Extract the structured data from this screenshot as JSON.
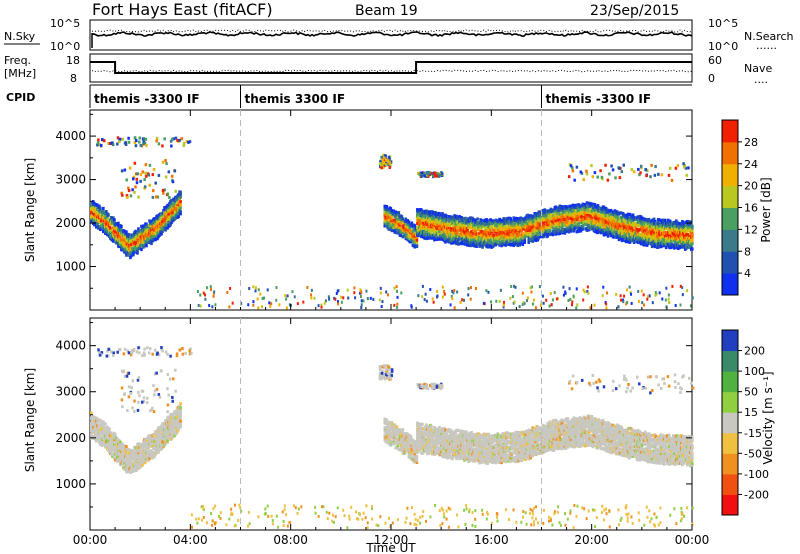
{
  "header": {
    "radar": "Fort Hays East (fitACF)",
    "beam": "Beam 19",
    "date": "23/Sep/2015"
  },
  "noise_panel": {
    "left_label": "N.Sky",
    "right_label": "N.Search",
    "left_ticks": [
      "10^5",
      "10^0"
    ],
    "right_ticks": [
      "10^5",
      "10^0"
    ],
    "dotted_legend": "......"
  },
  "freq_panel": {
    "left_label_1": "Freq.",
    "left_label_2": "[MHz]",
    "right_label": "Nave",
    "left_ticks": [
      "18",
      "8"
    ],
    "right_ticks": [
      "60",
      "0"
    ],
    "dotted_legend": "....",
    "freq_steps": [
      {
        "start_hour": 0.0,
        "end_hour": 1.0,
        "level": "high"
      },
      {
        "start_hour": 1.0,
        "end_hour": 13.0,
        "level": "low"
      },
      {
        "start_hour": 13.0,
        "end_hour": 24.0,
        "level": "high"
      }
    ]
  },
  "cpid": {
    "label": "CPID",
    "segments": [
      {
        "start_hour": 0.0,
        "name": "themis -3300 IF"
      },
      {
        "start_hour": 6.0,
        "name": "themis 3300 IF"
      },
      {
        "start_hour": 18.0,
        "name": "themis -3300 IF"
      }
    ]
  },
  "chart_data": [
    {
      "type": "heatmap",
      "title": "",
      "ylabel": "Slant Range [km]",
      "xlabel": "",
      "xlim": [
        0,
        24
      ],
      "ylim": [
        0,
        4600
      ],
      "yticks": [
        1000,
        2000,
        3000,
        4000
      ],
      "colorbar": {
        "label": "Power [dB]",
        "tick_labels": [
          "4",
          "8",
          "12",
          "16",
          "20",
          "24",
          "28"
        ],
        "colors": [
          "#1030f0",
          "#2050b0",
          "#3a7a8a",
          "#4aa060",
          "#b8c820",
          "#f0b000",
          "#f07000",
          "#f02000"
        ]
      },
      "echo_bands": [
        {
          "from_hour": 0.0,
          "to_hour": 3.6,
          "center_km": [
            2300,
            2100,
            1800,
            1500,
            1700,
            1900,
            2200,
            2500
          ],
          "width_km": 500
        },
        {
          "from_hour": 11.7,
          "to_hour": 13.0,
          "center_km": [
            2200,
            2000,
            1700
          ],
          "width_km": 450
        },
        {
          "from_hour": 13.0,
          "to_hour": 24.0,
          "center_km": [
            2050,
            1900,
            1800,
            1850,
            2100,
            2200,
            1950,
            1800,
            1750
          ],
          "width_km": 600
        }
      ]
    },
    {
      "type": "heatmap",
      "title": "",
      "ylabel": "Slant Range [km]",
      "xlabel": "Time UT",
      "xlim": [
        0,
        24
      ],
      "ylim": [
        0,
        4600
      ],
      "yticks": [
        1000,
        2000,
        3000,
        4000
      ],
      "x_tick_labels": [
        "00:00",
        "04:00",
        "08:00",
        "12:00",
        "16:00",
        "20:00",
        "00:00"
      ],
      "colorbar": {
        "label": "Velocity [m s⁻¹]",
        "tick_labels": [
          "200",
          "100",
          "50",
          "15",
          "-15",
          "-50",
          "-100",
          "-200"
        ],
        "colors": [
          "#2040c0",
          "#3a8a6a",
          "#50b040",
          "#90d040",
          "#c8c8c0",
          "#f0c040",
          "#f09020",
          "#f05010",
          "#f01010"
        ]
      }
    }
  ]
}
